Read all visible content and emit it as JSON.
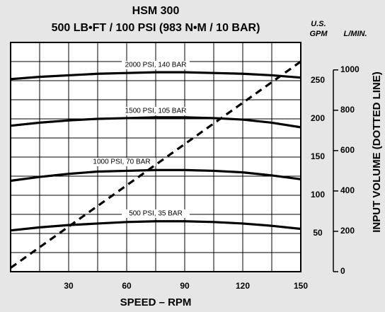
{
  "chart_data": {
    "type": "line",
    "title": "HSM 300",
    "subtitle": "500 LB•FT / 100 PSI (983 N•M / 10 BAR)",
    "x_label": "SPEED – RPM",
    "y_label": [
      "U.S.",
      "GPM"
    ],
    "y2_label": "L/MIN.",
    "y2_title": "INPUT VOLUME (DOTTED LINE)",
    "x": [
      0,
      15,
      30,
      45,
      60,
      75,
      90,
      105,
      120,
      135,
      150
    ],
    "xlim": [
      0,
      150
    ],
    "xticks": [
      30,
      60,
      90,
      120,
      150
    ],
    "xgrid": [
      15,
      30,
      45,
      60,
      75,
      90,
      105,
      120,
      135
    ],
    "ylim": [
      0,
      300
    ],
    "yticks": [
      50,
      100,
      150,
      200,
      250
    ],
    "ygrid": [
      25,
      50,
      75,
      100,
      125,
      150,
      175,
      200,
      225,
      250,
      275
    ],
    "y2lim": [
      0,
      1136
    ],
    "y2ticks": [
      0,
      200,
      400,
      600,
      800,
      1000
    ],
    "color": "#000000",
    "series": [
      {
        "name": "500 PSI, 35 BAR",
        "values": [
          54,
          58,
          61,
          63,
          65,
          66,
          66,
          65,
          63,
          60,
          56
        ]
      },
      {
        "name": "1000 PSI, 70 BAR",
        "values": [
          119,
          124,
          128,
          131,
          132,
          133,
          133,
          132,
          130,
          126,
          121
        ]
      },
      {
        "name": "1500 PSI, 105 BAR",
        "values": [
          191,
          195,
          198,
          200,
          201,
          202,
          202,
          201,
          199,
          195,
          189
        ]
      },
      {
        "name": "2000 PSI, 140 BAR",
        "values": [
          252,
          255,
          257,
          259,
          260,
          261,
          261,
          260,
          259,
          257,
          254
        ]
      }
    ],
    "dashed_line": {
      "x": [
        0,
        150
      ],
      "values": [
        5,
        275
      ]
    }
  }
}
